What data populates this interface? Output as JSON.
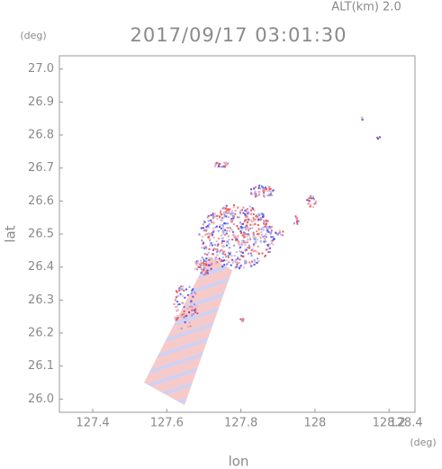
{
  "chart_data": {
    "type": "radar-image",
    "title": "2017/09/17 03:01:30",
    "altitude_label": "ALT(km) 2.0",
    "x_label": "lon",
    "y_label": "lat",
    "x_unit": "(deg)",
    "y_unit": "(deg)",
    "xlim": [
      127.31,
      128.27
    ],
    "ylim": [
      25.96,
      27.04
    ],
    "xticks": [
      127.4,
      127.6,
      127.8,
      128.0,
      128.2
    ],
    "x_end_label": "128.4",
    "yticks": [
      {
        "value": 26.0,
        "label": "26.0"
      },
      26.1,
      26.2,
      26.3,
      26.4,
      26.5,
      26.6,
      26.7,
      26.8,
      26.9,
      {
        "value": 27.0,
        "label": "27.0"
      }
    ]
  }
}
